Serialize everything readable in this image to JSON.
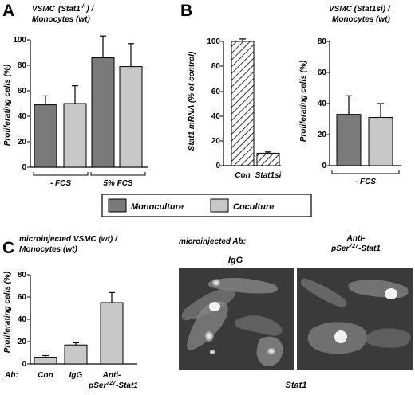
{
  "panels": {
    "A": {
      "letter": "A",
      "title_line1": "VSMC",
      "title_gene": "(Stat1",
      "title_sup": "-/-",
      "title_close": ") /",
      "title_line2": "Monocytes  (wt)",
      "ylabel": "Proliferating  cells  (%)",
      "ticks": [
        "0",
        "20",
        "40",
        "60",
        "80",
        "100"
      ],
      "group_labels": [
        "-  FCS",
        "5%  FCS"
      ]
    },
    "B": {
      "letter": "B",
      "left_ylabel": "Stat1  mRNA  (%  of  control)",
      "left_ticks": [
        "0",
        "20",
        "40",
        "60",
        "80",
        "100"
      ],
      "left_categories": [
        "Con",
        "Stat1si"
      ],
      "right_title_line1": "VSMC  (Stat1si)  /",
      "right_title_line2": "Monocytes  (wt)",
      "right_ylabel": "Proliferating  cells  (%)",
      "right_ticks": [
        "0",
        "20",
        "40",
        "60",
        "80"
      ],
      "right_group_label": "-  FCS"
    },
    "C": {
      "letter": "C",
      "title_line1": "microinjected  VSMC  (wt)  /",
      "title_line2": "Monocytes  (wt)",
      "ylabel": "Proliferating  cells  (%)",
      "ticks": [
        "0",
        "20",
        "40",
        "60",
        "80"
      ],
      "ab_prefix": "Ab:",
      "categories": [
        "Con",
        "IgG",
        "Anti-"
      ],
      "cat3_line2_pre": "pSer",
      "cat3_sup": "727",
      "cat3_line2_post": "-Stat1"
    },
    "micro": {
      "title": "microinjected  Ab:",
      "label_left": "IgG",
      "label_right_line1": "Anti-",
      "label_right_pre": "pSer",
      "label_right_sup": "727",
      "label_right_post": "-Stat1",
      "caption": "Stat1"
    }
  },
  "legend": {
    "items": [
      "Monoculture",
      "Coculture"
    ]
  },
  "colors": {
    "monoculture": "#7a7a7a",
    "coculture": "#c8c8c8",
    "micrograph_bg": "#3a3a3a",
    "cells": "#8e8e8e"
  },
  "chart_data": [
    {
      "panel": "A",
      "type": "bar",
      "title": "VSMC (Stat1-/-) / Monocytes (wt)",
      "ylabel": "Proliferating cells (%)",
      "ylim": [
        0,
        100
      ],
      "categories": [
        "- FCS",
        "5% FCS"
      ],
      "series": [
        {
          "name": "Monoculture",
          "values": [
            49,
            86
          ],
          "errors": [
            7,
            17
          ]
        },
        {
          "name": "Coculture",
          "values": [
            50,
            79
          ],
          "errors": [
            14,
            18
          ]
        }
      ]
    },
    {
      "panel": "B-left",
      "type": "bar",
      "ylabel": "Stat1 mRNA (% of control)",
      "ylim": [
        0,
        100
      ],
      "categories": [
        "Con",
        "Stat1si"
      ],
      "values": [
        100,
        10
      ],
      "errors": [
        2,
        1
      ]
    },
    {
      "panel": "B-right",
      "type": "bar",
      "title": "VSMC (Stat1si) / Monocytes (wt)",
      "ylabel": "Proliferating cells (%)",
      "ylim": [
        0,
        80
      ],
      "categories": [
        "- FCS"
      ],
      "series": [
        {
          "name": "Monoculture",
          "values": [
            33
          ],
          "errors": [
            12
          ]
        },
        {
          "name": "Coculture",
          "values": [
            31
          ],
          "errors": [
            9
          ]
        }
      ]
    },
    {
      "panel": "C",
      "type": "bar",
      "title": "microinjected VSMC (wt) / Monocytes (wt)",
      "ylabel": "Proliferating cells (%)",
      "ylim": [
        0,
        80
      ],
      "categories": [
        "Con",
        "IgG",
        "Anti-pSer727-Stat1"
      ],
      "values": [
        6,
        17,
        55
      ],
      "errors": [
        1.5,
        2,
        9
      ]
    }
  ]
}
